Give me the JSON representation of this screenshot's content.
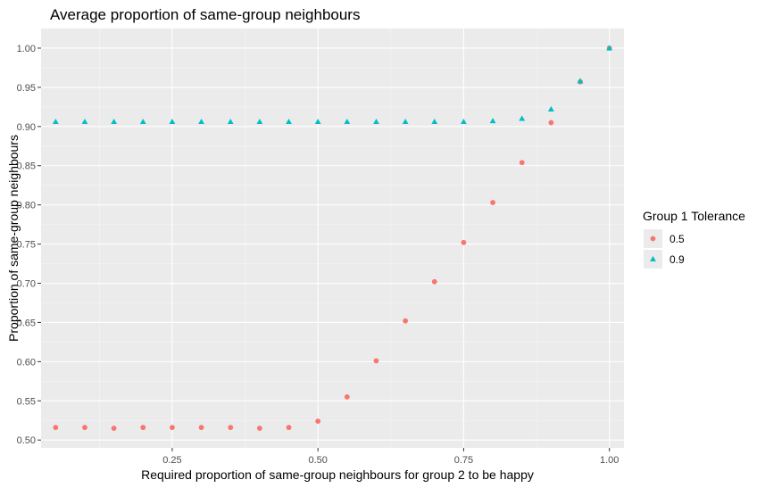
{
  "chart_data": {
    "type": "scatter",
    "title": "Average proportion of same-group neighbours",
    "xlabel": "Required proportion of same-group neighbours for group 2 to be happy",
    "ylabel": "Proportion of same-group neighbours",
    "xlim": [
      0.025,
      1.025
    ],
    "ylim": [
      0.49,
      1.025
    ],
    "x_ticks": [
      "0.25",
      "0.50",
      "0.75",
      "1.00"
    ],
    "y_ticks": [
      "0.50",
      "0.55",
      "0.60",
      "0.65",
      "0.70",
      "0.75",
      "0.80",
      "0.85",
      "0.90",
      "0.95",
      "1.00"
    ],
    "grid": true,
    "legend": {
      "title": "Group 1 Tolerance",
      "position": "right"
    },
    "x": [
      0.05,
      0.1,
      0.15,
      0.2,
      0.25,
      0.3,
      0.35,
      0.4,
      0.45,
      0.5,
      0.55,
      0.6,
      0.65,
      0.7,
      0.75,
      0.8,
      0.85,
      0.9,
      0.95,
      1.0
    ],
    "series": [
      {
        "name": "0.5",
        "marker": "circle",
        "color": "#F8766D",
        "values": [
          0.516,
          0.516,
          0.515,
          0.516,
          0.516,
          0.516,
          0.516,
          0.515,
          0.516,
          0.524,
          0.555,
          0.601,
          0.652,
          0.702,
          0.752,
          0.803,
          0.854,
          0.905,
          0.957,
          1.0
        ]
      },
      {
        "name": "0.9",
        "marker": "triangle",
        "color": "#00BFC4",
        "values": [
          0.906,
          0.906,
          0.906,
          0.906,
          0.906,
          0.906,
          0.906,
          0.906,
          0.906,
          0.906,
          0.906,
          0.906,
          0.906,
          0.906,
          0.906,
          0.907,
          0.91,
          0.922,
          0.958,
          1.0
        ]
      }
    ]
  }
}
